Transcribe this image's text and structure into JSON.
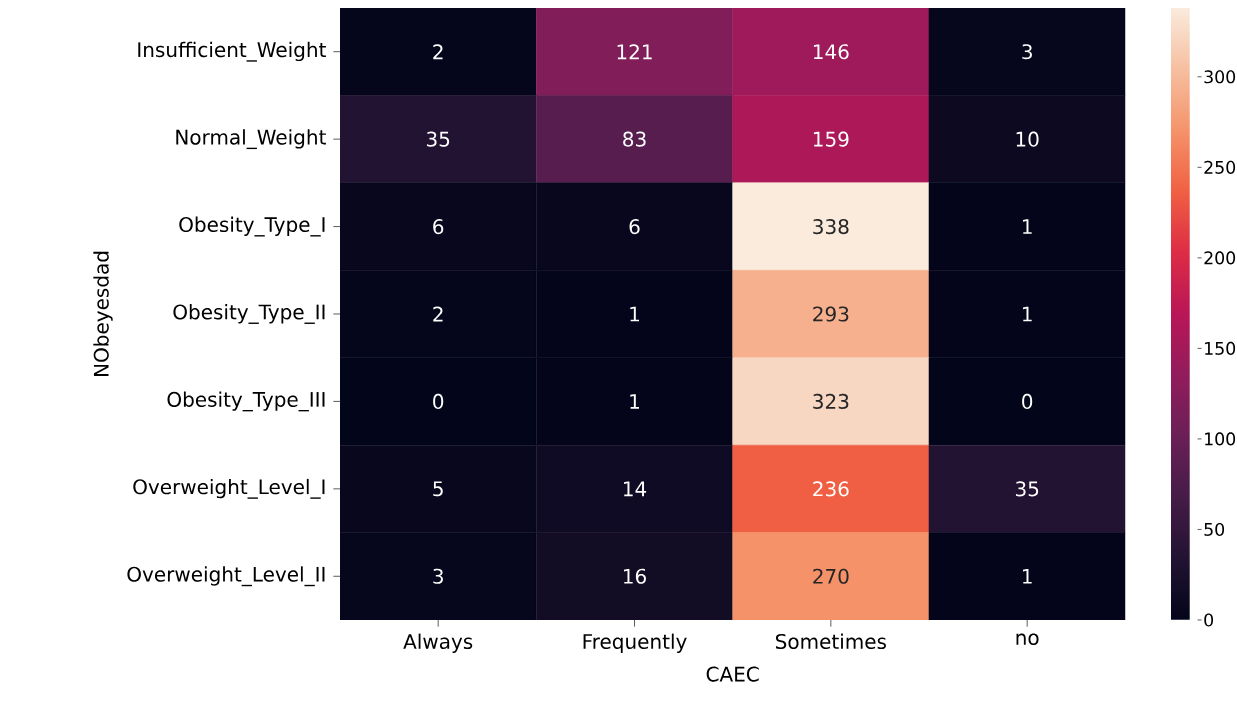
{
  "chart_data": {
    "type": "heatmap",
    "xlabel": "CAEC",
    "ylabel": "NObeyesdad",
    "categories": [
      "Always",
      "Frequently",
      "Sometimes",
      "no"
    ],
    "y_categories": [
      "Insufficient_Weight",
      "Normal_Weight",
      "Obesity_Type_I",
      "Obesity_Type_II",
      "Obesity_Type_III",
      "Overweight_Level_I",
      "Overweight_Level_II"
    ],
    "cells": [
      [
        2,
        121,
        146,
        3
      ],
      [
        35,
        83,
        159,
        10
      ],
      [
        6,
        6,
        338,
        1
      ],
      [
        2,
        1,
        293,
        1
      ],
      [
        0,
        1,
        323,
        0
      ],
      [
        5,
        14,
        236,
        35
      ],
      [
        3,
        16,
        270,
        1
      ]
    ],
    "clim": [
      0,
      338
    ],
    "cticks": [
      0,
      50,
      100,
      150,
      200,
      250,
      300
    ],
    "data_labels": true
  }
}
